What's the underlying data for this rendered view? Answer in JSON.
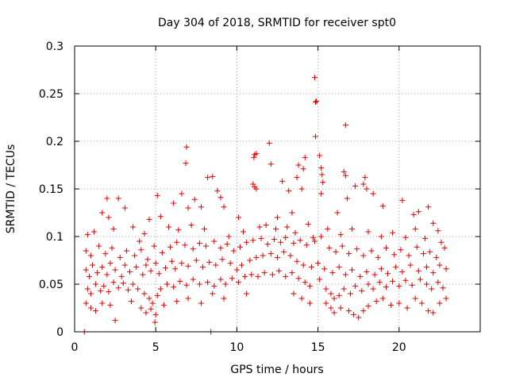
{
  "chart_data": {
    "type": "scatter",
    "title": "Day 304 of 2018, SRMTID for receiver spt0",
    "xlabel": "GPS time / hours",
    "ylabel": "SRMTID / TECUs",
    "xlim": [
      0,
      25
    ],
    "ylim": [
      0,
      0.3
    ],
    "xticks": [
      0,
      5,
      10,
      15,
      20
    ],
    "yticks": [
      0,
      0.05,
      0.1,
      0.15,
      0.2,
      0.25,
      0.3
    ],
    "grid": true,
    "marker": "plus",
    "color": "#e00000",
    "points": [
      [
        0.6,
        0.0
      ],
      [
        8.4,
        0.0
      ],
      [
        14.8,
        0.267
      ],
      [
        14.85,
        0.241
      ],
      [
        14.9,
        0.242
      ],
      [
        14.85,
        0.205
      ],
      [
        16.7,
        0.217
      ],
      [
        6.9,
        0.194
      ],
      [
        12.0,
        0.198
      ],
      [
        11.1,
        0.186
      ],
      [
        11.05,
        0.183
      ],
      [
        11.2,
        0.187
      ],
      [
        14.2,
        0.183
      ],
      [
        15.1,
        0.185
      ],
      [
        6.85,
        0.177
      ],
      [
        12.1,
        0.176
      ],
      [
        13.8,
        0.175
      ],
      [
        16.6,
        0.168
      ],
      [
        16.7,
        0.164
      ],
      [
        8.2,
        0.162
      ],
      [
        8.5,
        0.163
      ],
      [
        13.7,
        0.162
      ],
      [
        17.9,
        0.162
      ],
      [
        14.1,
        0.171
      ],
      [
        15.2,
        0.172
      ],
      [
        15.25,
        0.165
      ],
      [
        11.0,
        0.155
      ],
      [
        11.1,
        0.152
      ],
      [
        11.2,
        0.15
      ],
      [
        12.8,
        0.158
      ],
      [
        13.2,
        0.148
      ],
      [
        14.0,
        0.15
      ],
      [
        15.3,
        0.157
      ],
      [
        15.2,
        0.145
      ],
      [
        17.3,
        0.153
      ],
      [
        17.8,
        0.155
      ],
      [
        18.0,
        0.15
      ],
      [
        16.8,
        0.14
      ],
      [
        18.4,
        0.145
      ],
      [
        2.0,
        0.14
      ],
      [
        2.7,
        0.14
      ],
      [
        5.1,
        0.143
      ],
      [
        6.6,
        0.145
      ],
      [
        7.4,
        0.139
      ],
      [
        8.8,
        0.148
      ],
      [
        9.0,
        0.141
      ],
      [
        6.1,
        0.135
      ],
      [
        7.0,
        0.13
      ],
      [
        7.8,
        0.131
      ],
      [
        9.2,
        0.131
      ],
      [
        10.1,
        0.12
      ],
      [
        21.8,
        0.131
      ],
      [
        19.0,
        0.132
      ],
      [
        20.2,
        0.138
      ],
      [
        21.2,
        0.126
      ],
      [
        20.9,
        0.123
      ],
      [
        1.7,
        0.125
      ],
      [
        2.1,
        0.12
      ],
      [
        3.1,
        0.13
      ],
      [
        4.6,
        0.118
      ],
      [
        5.3,
        0.121
      ],
      [
        12.5,
        0.12
      ],
      [
        13.4,
        0.125
      ],
      [
        16.2,
        0.125
      ],
      [
        22.1,
        0.114
      ],
      [
        22.4,
        0.106
      ],
      [
        0.8,
        0.102
      ],
      [
        1.2,
        0.105
      ],
      [
        2.4,
        0.108
      ],
      [
        3.6,
        0.11
      ],
      [
        4.0,
        0.095
      ],
      [
        4.3,
        0.103
      ],
      [
        5.8,
        0.11
      ],
      [
        6.4,
        0.107
      ],
      [
        7.2,
        0.112
      ],
      [
        8.0,
        0.108
      ],
      [
        9.5,
        0.1
      ],
      [
        10.4,
        0.105
      ],
      [
        11.4,
        0.11
      ],
      [
        11.8,
        0.112
      ],
      [
        12.4,
        0.108
      ],
      [
        13.1,
        0.11
      ],
      [
        13.6,
        0.104
      ],
      [
        14.4,
        0.113
      ],
      [
        14.7,
        0.099
      ],
      [
        15.6,
        0.108
      ],
      [
        16.4,
        0.102
      ],
      [
        17.1,
        0.108
      ],
      [
        18.1,
        0.105
      ],
      [
        18.9,
        0.1
      ],
      [
        19.6,
        0.104
      ],
      [
        20.4,
        0.099
      ],
      [
        21.0,
        0.108
      ],
      [
        21.6,
        0.098
      ],
      [
        22.6,
        0.094
      ],
      [
        0.7,
        0.085
      ],
      [
        1.0,
        0.08
      ],
      [
        1.5,
        0.09
      ],
      [
        1.9,
        0.082
      ],
      [
        2.3,
        0.088
      ],
      [
        2.8,
        0.078
      ],
      [
        3.2,
        0.085
      ],
      [
        3.7,
        0.08
      ],
      [
        4.1,
        0.086
      ],
      [
        4.5,
        0.076
      ],
      [
        4.9,
        0.09
      ],
      [
        5.4,
        0.083
      ],
      [
        5.9,
        0.089
      ],
      [
        6.3,
        0.094
      ],
      [
        6.8,
        0.091
      ],
      [
        7.3,
        0.087
      ],
      [
        7.7,
        0.093
      ],
      [
        8.1,
        0.09
      ],
      [
        8.6,
        0.095
      ],
      [
        9.0,
        0.088
      ],
      [
        9.4,
        0.092
      ],
      [
        9.8,
        0.085
      ],
      [
        10.2,
        0.089
      ],
      [
        10.6,
        0.094
      ],
      [
        11.0,
        0.096
      ],
      [
        11.5,
        0.098
      ],
      [
        11.9,
        0.092
      ],
      [
        12.3,
        0.097
      ],
      [
        12.7,
        0.094
      ],
      [
        13.0,
        0.099
      ],
      [
        13.5,
        0.093
      ],
      [
        13.9,
        0.096
      ],
      [
        14.3,
        0.091
      ],
      [
        14.8,
        0.095
      ],
      [
        15.2,
        0.1
      ],
      [
        15.7,
        0.088
      ],
      [
        16.1,
        0.084
      ],
      [
        16.5,
        0.09
      ],
      [
        16.9,
        0.082
      ],
      [
        17.4,
        0.087
      ],
      [
        17.8,
        0.08
      ],
      [
        18.3,
        0.085
      ],
      [
        18.7,
        0.078
      ],
      [
        19.2,
        0.088
      ],
      [
        19.7,
        0.081
      ],
      [
        20.1,
        0.086
      ],
      [
        20.6,
        0.08
      ],
      [
        21.1,
        0.089
      ],
      [
        21.5,
        0.082
      ],
      [
        21.9,
        0.084
      ],
      [
        22.3,
        0.078
      ],
      [
        22.8,
        0.088
      ],
      [
        0.7,
        0.065
      ],
      [
        0.9,
        0.058
      ],
      [
        1.1,
        0.07
      ],
      [
        1.4,
        0.062
      ],
      [
        1.7,
        0.068
      ],
      [
        2.0,
        0.06
      ],
      [
        2.2,
        0.072
      ],
      [
        2.5,
        0.065
      ],
      [
        2.9,
        0.058
      ],
      [
        3.1,
        0.07
      ],
      [
        3.4,
        0.063
      ],
      [
        3.8,
        0.068
      ],
      [
        4.2,
        0.06
      ],
      [
        4.4,
        0.07
      ],
      [
        4.7,
        0.064
      ],
      [
        5.0,
        0.072
      ],
      [
        5.2,
        0.061
      ],
      [
        5.6,
        0.067
      ],
      [
        6.0,
        0.074
      ],
      [
        6.2,
        0.066
      ],
      [
        6.6,
        0.072
      ],
      [
        7.0,
        0.069
      ],
      [
        7.5,
        0.075
      ],
      [
        7.9,
        0.068
      ],
      [
        8.3,
        0.073
      ],
      [
        8.7,
        0.07
      ],
      [
        9.1,
        0.076
      ],
      [
        9.6,
        0.072
      ],
      [
        10.0,
        0.065
      ],
      [
        10.3,
        0.07
      ],
      [
        10.8,
        0.075
      ],
      [
        11.2,
        0.078
      ],
      [
        11.6,
        0.08
      ],
      [
        12.1,
        0.082
      ],
      [
        12.5,
        0.078
      ],
      [
        12.9,
        0.084
      ],
      [
        13.3,
        0.08
      ],
      [
        13.7,
        0.074
      ],
      [
        14.1,
        0.07
      ],
      [
        14.6,
        0.068
      ],
      [
        15.0,
        0.072
      ],
      [
        15.4,
        0.066
      ],
      [
        15.9,
        0.062
      ],
      [
        16.3,
        0.068
      ],
      [
        16.7,
        0.06
      ],
      [
        17.1,
        0.065
      ],
      [
        17.6,
        0.058
      ],
      [
        18.0,
        0.063
      ],
      [
        18.5,
        0.06
      ],
      [
        18.9,
        0.066
      ],
      [
        19.3,
        0.061
      ],
      [
        19.8,
        0.068
      ],
      [
        20.2,
        0.063
      ],
      [
        20.7,
        0.07
      ],
      [
        21.2,
        0.064
      ],
      [
        21.7,
        0.068
      ],
      [
        22.1,
        0.062
      ],
      [
        22.5,
        0.07
      ],
      [
        22.9,
        0.066
      ],
      [
        0.8,
        0.045
      ],
      [
        1.0,
        0.04
      ],
      [
        1.3,
        0.05
      ],
      [
        1.6,
        0.043
      ],
      [
        1.8,
        0.048
      ],
      [
        2.1,
        0.042
      ],
      [
        2.4,
        0.052
      ],
      [
        2.7,
        0.046
      ],
      [
        3.0,
        0.051
      ],
      [
        3.3,
        0.044
      ],
      [
        3.6,
        0.05
      ],
      [
        3.9,
        0.045
      ],
      [
        4.3,
        0.04
      ],
      [
        4.6,
        0.035
      ],
      [
        4.8,
        0.03
      ],
      [
        5.1,
        0.038
      ],
      [
        5.3,
        0.045
      ],
      [
        5.7,
        0.05
      ],
      [
        6.1,
        0.047
      ],
      [
        6.5,
        0.053
      ],
      [
        6.9,
        0.049
      ],
      [
        7.3,
        0.055
      ],
      [
        7.7,
        0.05
      ],
      [
        8.2,
        0.052
      ],
      [
        8.6,
        0.048
      ],
      [
        9.0,
        0.055
      ],
      [
        9.3,
        0.05
      ],
      [
        9.7,
        0.056
      ],
      [
        10.1,
        0.052
      ],
      [
        10.5,
        0.058
      ],
      [
        10.9,
        0.06
      ],
      [
        11.3,
        0.058
      ],
      [
        11.7,
        0.062
      ],
      [
        12.2,
        0.06
      ],
      [
        12.6,
        0.064
      ],
      [
        13.0,
        0.058
      ],
      [
        13.4,
        0.062
      ],
      [
        13.8,
        0.056
      ],
      [
        14.2,
        0.052
      ],
      [
        14.5,
        0.048
      ],
      [
        15.1,
        0.055
      ],
      [
        15.5,
        0.045
      ],
      [
        15.8,
        0.04
      ],
      [
        16.0,
        0.035
      ],
      [
        16.3,
        0.038
      ],
      [
        16.6,
        0.045
      ],
      [
        17.0,
        0.04
      ],
      [
        17.3,
        0.048
      ],
      [
        17.7,
        0.043
      ],
      [
        18.1,
        0.05
      ],
      [
        18.4,
        0.045
      ],
      [
        18.8,
        0.052
      ],
      [
        19.2,
        0.047
      ],
      [
        19.6,
        0.053
      ],
      [
        20.0,
        0.048
      ],
      [
        20.4,
        0.054
      ],
      [
        20.8,
        0.049
      ],
      [
        21.3,
        0.055
      ],
      [
        21.7,
        0.05
      ],
      [
        22.0,
        0.045
      ],
      [
        22.4,
        0.052
      ],
      [
        22.7,
        0.046
      ],
      [
        0.7,
        0.03
      ],
      [
        1.0,
        0.025
      ],
      [
        1.3,
        0.022
      ],
      [
        1.7,
        0.03
      ],
      [
        2.2,
        0.028
      ],
      [
        2.5,
        0.012
      ],
      [
        3.5,
        0.032
      ],
      [
        4.1,
        0.025
      ],
      [
        4.4,
        0.02
      ],
      [
        4.7,
        0.024
      ],
      [
        5.0,
        0.018
      ],
      [
        4.95,
        0.01
      ],
      [
        5.5,
        0.028
      ],
      [
        6.3,
        0.032
      ],
      [
        7.0,
        0.035
      ],
      [
        7.8,
        0.03
      ],
      [
        8.5,
        0.04
      ],
      [
        9.2,
        0.035
      ],
      [
        10.6,
        0.04
      ],
      [
        13.5,
        0.04
      ],
      [
        14.0,
        0.035
      ],
      [
        14.5,
        0.03
      ],
      [
        15.5,
        0.03
      ],
      [
        15.8,
        0.025
      ],
      [
        16.0,
        0.02
      ],
      [
        16.4,
        0.025
      ],
      [
        16.9,
        0.022
      ],
      [
        17.2,
        0.018
      ],
      [
        17.5,
        0.015
      ],
      [
        17.8,
        0.022
      ],
      [
        18.1,
        0.027
      ],
      [
        18.6,
        0.032
      ],
      [
        19.0,
        0.035
      ],
      [
        19.5,
        0.028
      ],
      [
        20.0,
        0.03
      ],
      [
        20.5,
        0.025
      ],
      [
        21.0,
        0.035
      ],
      [
        21.4,
        0.03
      ],
      [
        21.8,
        0.022
      ],
      [
        22.1,
        0.02
      ],
      [
        22.5,
        0.03
      ],
      [
        22.9,
        0.035
      ]
    ]
  }
}
